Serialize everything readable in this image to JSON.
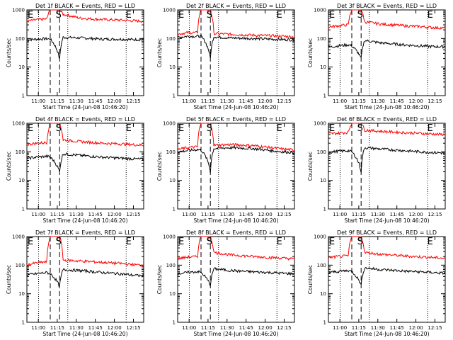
{
  "figure": {
    "title": "Detector count rates, BLACK = Events, RED = LLD",
    "background": "#ffffff"
  },
  "colors": {
    "events": "#000000",
    "lld": "#ff0000",
    "axes": "#000000"
  },
  "chart_data": [
    {
      "type": "line",
      "title": "Det 1f BLACK = Events, RED = LLD",
      "xlabel": "Start Time (24-Jun-08 10:46:20)",
      "ylabel": "Counts/sec",
      "x_tick_labels": [
        "11:00",
        "11:15",
        "11:30",
        "11:45",
        "12:00",
        "12:15"
      ],
      "y_tick_labels": [
        "1",
        "10",
        "100",
        "1000"
      ],
      "ylim": [
        1,
        1000
      ],
      "yscale": "log",
      "xlim_min": [
        0,
        100
      ],
      "markers": [
        {
          "label": "E",
          "t": 0
        },
        {
          "label": "S",
          "t": 24
        },
        {
          "label": "E",
          "t": 84
        }
      ],
      "vlines_dotted": [
        10,
        35,
        85
      ],
      "vlines_dashed": [
        20,
        28
      ],
      "series": [
        {
          "name": "Events",
          "color": "#000000",
          "x": [
            0,
            8,
            17,
            20,
            28,
            31,
            45,
            65,
            80,
            90,
            100
          ],
          "y": [
            90,
            95,
            98,
            95,
            18,
            110,
            105,
            95,
            95,
            92,
            92
          ]
        },
        {
          "name": "LLD",
          "color": "#ff0000",
          "x": [
            0,
            8,
            17,
            20,
            28,
            31,
            45,
            65,
            80,
            90,
            100
          ],
          "y": [
            400,
            450,
            480,
            1000,
            1000,
            700,
            520,
            460,
            440,
            420,
            400
          ]
        }
      ]
    },
    {
      "type": "line",
      "title": "Det 2f BLACK = Events, RED = LLD",
      "xlabel": "Start Time (24-Jun-08 10:46:20)",
      "ylabel": "Counts/sec",
      "x_tick_labels": [
        "11:00",
        "11:15",
        "11:30",
        "11:45",
        "12:00",
        "12:15"
      ],
      "y_tick_labels": [
        "1",
        "10",
        "100",
        "1000"
      ],
      "ylim": [
        1,
        1000
      ],
      "yscale": "log",
      "xlim_min": [
        0,
        100
      ],
      "markers": [
        {
          "label": "E",
          "t": 0
        },
        {
          "label": "S",
          "t": 24
        },
        {
          "label": "E",
          "t": 84
        }
      ],
      "vlines_dotted": [
        10,
        35,
        85
      ],
      "vlines_dashed": [
        20,
        28
      ],
      "series": [
        {
          "name": "Events",
          "color": "#000000",
          "x": [
            0,
            8,
            17,
            20,
            28,
            31,
            45,
            65,
            80,
            90,
            100
          ],
          "y": [
            110,
            120,
            120,
            120,
            20,
            115,
            105,
            100,
            95,
            92,
            90
          ]
        },
        {
          "name": "LLD",
          "color": "#ff0000",
          "x": [
            0,
            8,
            17,
            20,
            28,
            31,
            45,
            65,
            80,
            90,
            100
          ],
          "y": [
            140,
            160,
            160,
            1000,
            1000,
            150,
            140,
            130,
            125,
            120,
            115
          ]
        }
      ]
    },
    {
      "type": "line",
      "title": "Det 3f BLACK = Events, RED = LLD",
      "xlabel": "Start Time (24-Jun-08 10:46:20)",
      "ylabel": "Counts/sec",
      "x_tick_labels": [
        "11:00",
        "11:15",
        "11:30",
        "11:45",
        "12:00",
        "12:15"
      ],
      "y_tick_labels": [
        "1",
        "10",
        "100",
        "1000"
      ],
      "ylim": [
        1,
        1000
      ],
      "yscale": "log",
      "xlim_min": [
        0,
        100
      ],
      "markers": [
        {
          "label": "E",
          "t": 0
        },
        {
          "label": "S",
          "t": 24
        },
        {
          "label": "E",
          "t": 84
        }
      ],
      "vlines_dotted": [
        10,
        35,
        85
      ],
      "vlines_dashed": [
        20,
        28
      ],
      "series": [
        {
          "name": "Events",
          "color": "#000000",
          "x": [
            0,
            8,
            17,
            20,
            28,
            31,
            45,
            65,
            80,
            90,
            100
          ],
          "y": [
            50,
            55,
            60,
            55,
            20,
            85,
            70,
            60,
            55,
            52,
            52
          ]
        },
        {
          "name": "LLD",
          "color": "#ff0000",
          "x": [
            0,
            8,
            17,
            20,
            28,
            31,
            45,
            65,
            80,
            90,
            100
          ],
          "y": [
            250,
            280,
            300,
            1000,
            1000,
            380,
            320,
            280,
            260,
            240,
            230
          ]
        }
      ]
    },
    {
      "type": "line",
      "title": "Det 4f BLACK = Events, RED = LLD",
      "xlabel": "Start Time (24-Jun-08 10:46:20)",
      "ylabel": "Counts/sec",
      "x_tick_labels": [
        "11:00",
        "11:15",
        "11:30",
        "11:45",
        "12:00",
        "12:15"
      ],
      "y_tick_labels": [
        "1",
        "10",
        "100",
        "1000"
      ],
      "ylim": [
        1,
        1000
      ],
      "yscale": "log",
      "xlim_min": [
        0,
        100
      ],
      "markers": [
        {
          "label": "E",
          "t": 0
        },
        {
          "label": "S",
          "t": 24
        },
        {
          "label": "E",
          "t": 84
        }
      ],
      "vlines_dotted": [
        10,
        35,
        85
      ],
      "vlines_dashed": [
        20,
        28
      ],
      "series": [
        {
          "name": "Events",
          "color": "#000000",
          "x": [
            0,
            8,
            17,
            20,
            28,
            31,
            45,
            65,
            80,
            90,
            100
          ],
          "y": [
            60,
            65,
            70,
            65,
            20,
            85,
            75,
            65,
            60,
            57,
            55
          ]
        },
        {
          "name": "LLD",
          "color": "#ff0000",
          "x": [
            0,
            8,
            17,
            20,
            28,
            31,
            45,
            65,
            80,
            90,
            100
          ],
          "y": [
            180,
            200,
            210,
            1000,
            1000,
            260,
            230,
            200,
            190,
            180,
            170
          ]
        }
      ]
    },
    {
      "type": "line",
      "title": "Det 5f BLACK = Events, RED = LLD",
      "xlabel": "Start Time (24-Jun-08 10:46:20)",
      "ylabel": "Counts/sec",
      "x_tick_labels": [
        "11:00",
        "11:15",
        "11:30",
        "11:45",
        "12:00",
        "12:15"
      ],
      "y_tick_labels": [
        "1",
        "10",
        "100",
        "1000"
      ],
      "ylim": [
        1,
        1000
      ],
      "yscale": "log",
      "xlim_min": [
        0,
        100
      ],
      "markers": [
        {
          "label": "E",
          "t": 0
        },
        {
          "label": "S",
          "t": 24
        },
        {
          "label": "E",
          "t": 84
        }
      ],
      "vlines_dotted": [
        10,
        35,
        85
      ],
      "vlines_dashed": [
        20,
        28
      ],
      "series": [
        {
          "name": "Events",
          "color": "#000000",
          "x": [
            0,
            8,
            17,
            20,
            28,
            31,
            45,
            65,
            80,
            90,
            100
          ],
          "y": [
            100,
            110,
            120,
            115,
            20,
            130,
            140,
            130,
            110,
            100,
            95
          ]
        },
        {
          "name": "LLD",
          "color": "#ff0000",
          "x": [
            0,
            8,
            17,
            20,
            28,
            31,
            45,
            65,
            80,
            90,
            100
          ],
          "y": [
            120,
            140,
            150,
            1000,
            1000,
            170,
            180,
            165,
            140,
            125,
            115
          ]
        }
      ]
    },
    {
      "type": "line",
      "title": "Det 6f BLACK = Events, RED = LLD",
      "xlabel": "Start Time (24-Jun-08 10:46:20)",
      "ylabel": "Counts/sec",
      "x_tick_labels": [
        "11:00",
        "11:15",
        "11:30",
        "11:45",
        "12:00",
        "12:15"
      ],
      "y_tick_labels": [
        "1",
        "10",
        "100",
        "1000"
      ],
      "ylim": [
        1,
        1000
      ],
      "yscale": "log",
      "xlim_min": [
        0,
        100
      ],
      "markers": [
        {
          "label": "E",
          "t": 0
        },
        {
          "label": "S",
          "t": 24
        },
        {
          "label": "E",
          "t": 84
        }
      ],
      "vlines_dotted": [
        10,
        35,
        85
      ],
      "vlines_dashed": [
        20,
        28
      ],
      "series": [
        {
          "name": "Events",
          "color": "#000000",
          "x": [
            0,
            8,
            17,
            20,
            28,
            31,
            45,
            65,
            80,
            90,
            100
          ],
          "y": [
            95,
            105,
            110,
            100,
            20,
            140,
            125,
            110,
            100,
            95,
            90
          ]
        },
        {
          "name": "LLD",
          "color": "#ff0000",
          "x": [
            0,
            8,
            17,
            20,
            28,
            31,
            45,
            65,
            80,
            90,
            100
          ],
          "y": [
            420,
            450,
            480,
            1000,
            1000,
            580,
            520,
            470,
            440,
            420,
            400
          ]
        }
      ]
    },
    {
      "type": "line",
      "title": "Det 7f BLACK = Events, RED = LLD",
      "xlabel": "Start Time (24-Jun-08 10:46:20)",
      "ylabel": "Counts/sec",
      "x_tick_labels": [
        "11:00",
        "11:15",
        "11:30",
        "11:45",
        "12:00",
        "12:15"
      ],
      "y_tick_labels": [
        "1",
        "10",
        "100",
        "1000"
      ],
      "ylim": [
        1,
        1000
      ],
      "yscale": "log",
      "xlim_min": [
        0,
        100
      ],
      "markers": [
        {
          "label": "E",
          "t": 0
        },
        {
          "label": "S",
          "t": 24
        },
        {
          "label": "E",
          "t": 84
        }
      ],
      "vlines_dotted": [
        10,
        35,
        85
      ],
      "vlines_dashed": [
        20,
        28
      ],
      "series": [
        {
          "name": "Events",
          "color": "#000000",
          "x": [
            0,
            8,
            17,
            20,
            28,
            31,
            45,
            65,
            80,
            90,
            100
          ],
          "y": [
            45,
            50,
            55,
            50,
            18,
            70,
            65,
            55,
            50,
            45,
            42
          ]
        },
        {
          "name": "LLD",
          "color": "#ff0000",
          "x": [
            0,
            8,
            17,
            20,
            28,
            31,
            45,
            65,
            80,
            90,
            100
          ],
          "y": [
            100,
            120,
            130,
            1000,
            1000,
            150,
            140,
            125,
            115,
            105,
            100
          ]
        }
      ]
    },
    {
      "type": "line",
      "title": "Det 8f BLACK = Events, RED = LLD",
      "xlabel": "Start Time (24-Jun-08 10:46:20)",
      "ylabel": "Counts/sec",
      "x_tick_labels": [
        "11:00",
        "11:15",
        "11:30",
        "11:45",
        "12:00",
        "12:15"
      ],
      "y_tick_labels": [
        "1",
        "10",
        "100",
        "1000"
      ],
      "ylim": [
        1,
        1000
      ],
      "yscale": "log",
      "xlim_min": [
        0,
        100
      ],
      "markers": [
        {
          "label": "E",
          "t": 0
        },
        {
          "label": "S",
          "t": 24
        },
        {
          "label": "E",
          "t": 84
        }
      ],
      "vlines_dotted": [
        10,
        35,
        85
      ],
      "vlines_dashed": [
        20,
        28
      ],
      "series": [
        {
          "name": "Events",
          "color": "#000000",
          "x": [
            0,
            8,
            17,
            20,
            28,
            31,
            45,
            65,
            80,
            90,
            100
          ],
          "y": [
            50,
            55,
            60,
            55,
            20,
            75,
            65,
            58,
            55,
            52,
            50
          ]
        },
        {
          "name": "LLD",
          "color": "#ff0000",
          "x": [
            0,
            8,
            17,
            20,
            28,
            31,
            45,
            65,
            80,
            90,
            100
          ],
          "y": [
            170,
            190,
            200,
            1000,
            1000,
            280,
            230,
            200,
            185,
            175,
            165
          ]
        }
      ]
    },
    {
      "type": "line",
      "title": "Det 9f BLACK = Events, RED = LLD",
      "xlabel": "Start Time (24-Jun-08 10:46:20)",
      "ylabel": "Counts/sec",
      "x_tick_labels": [
        "11:00",
        "11:15",
        "11:30",
        "11:45",
        "12:00",
        "12:15"
      ],
      "y_tick_labels": [
        "1",
        "10",
        "100",
        "1000"
      ],
      "ylim": [
        1,
        1000
      ],
      "yscale": "log",
      "xlim_min": [
        0,
        100
      ],
      "markers": [
        {
          "label": "E",
          "t": 0
        },
        {
          "label": "S",
          "t": 24
        },
        {
          "label": "E",
          "t": 84
        }
      ],
      "vlines_dotted": [
        10,
        35,
        85
      ],
      "vlines_dashed": [
        20,
        28
      ],
      "series": [
        {
          "name": "Events",
          "color": "#000000",
          "x": [
            0,
            8,
            17,
            20,
            28,
            31,
            45,
            65,
            80,
            90,
            100
          ],
          "y": [
            55,
            60,
            65,
            60,
            20,
            80,
            70,
            62,
            58,
            55,
            52
          ]
        },
        {
          "name": "LLD",
          "color": "#ff0000",
          "x": [
            0,
            8,
            17,
            20,
            28,
            31,
            45,
            65,
            80,
            90,
            100
          ],
          "y": [
            180,
            200,
            210,
            1000,
            1000,
            280,
            240,
            210,
            195,
            185,
            175
          ]
        }
      ]
    }
  ]
}
